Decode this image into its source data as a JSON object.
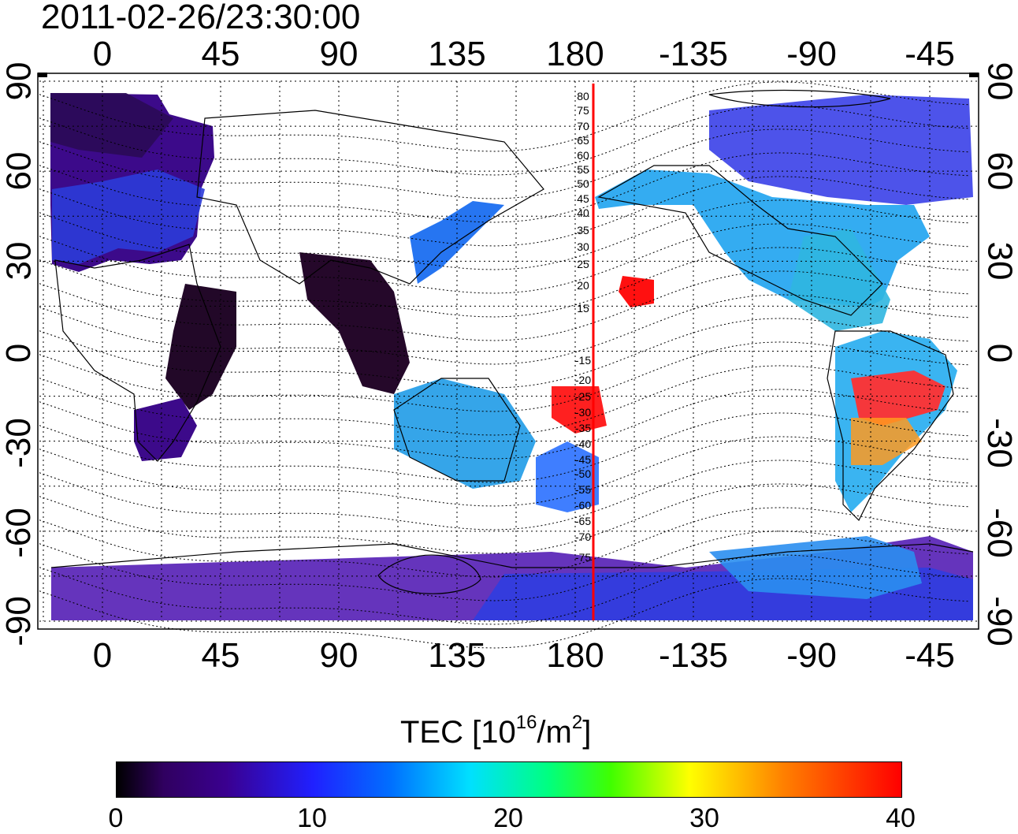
{
  "timestamp": "2011-02-26/23:30:00",
  "top_ticks": [
    "0",
    "45",
    "90",
    "135",
    "180",
    "-135",
    "-90",
    "-45"
  ],
  "bottom_ticks": [
    "0",
    "45",
    "90",
    "135",
    "180",
    "-135",
    "-90",
    "-45"
  ],
  "left_ticks": [
    "90",
    "60",
    "30",
    "0",
    "-30",
    "-60",
    "-90"
  ],
  "right_ticks": [
    "90",
    "60",
    "30",
    "0",
    "-30",
    "-60",
    "-90"
  ],
  "colorbar": {
    "title_prefix": "TEC  [10",
    "title_exp1": "16",
    "title_mid": "/m",
    "title_exp2": "2",
    "title_suffix": "]",
    "labels": [
      "0",
      "10",
      "20",
      "30",
      "40"
    ]
  },
  "contour_labels": [
    "80",
    "75",
    "70",
    "65",
    "60",
    "55",
    "50",
    "45",
    "40",
    "35",
    "30",
    "25",
    "20",
    "15",
    "-15",
    "-20",
    "-25",
    "-30",
    "-35",
    "-40",
    "-45",
    "-50",
    "-55",
    "-60",
    "-65",
    "-70",
    "-75"
  ],
  "colors": {
    "marker_line": "#ff0000"
  }
}
